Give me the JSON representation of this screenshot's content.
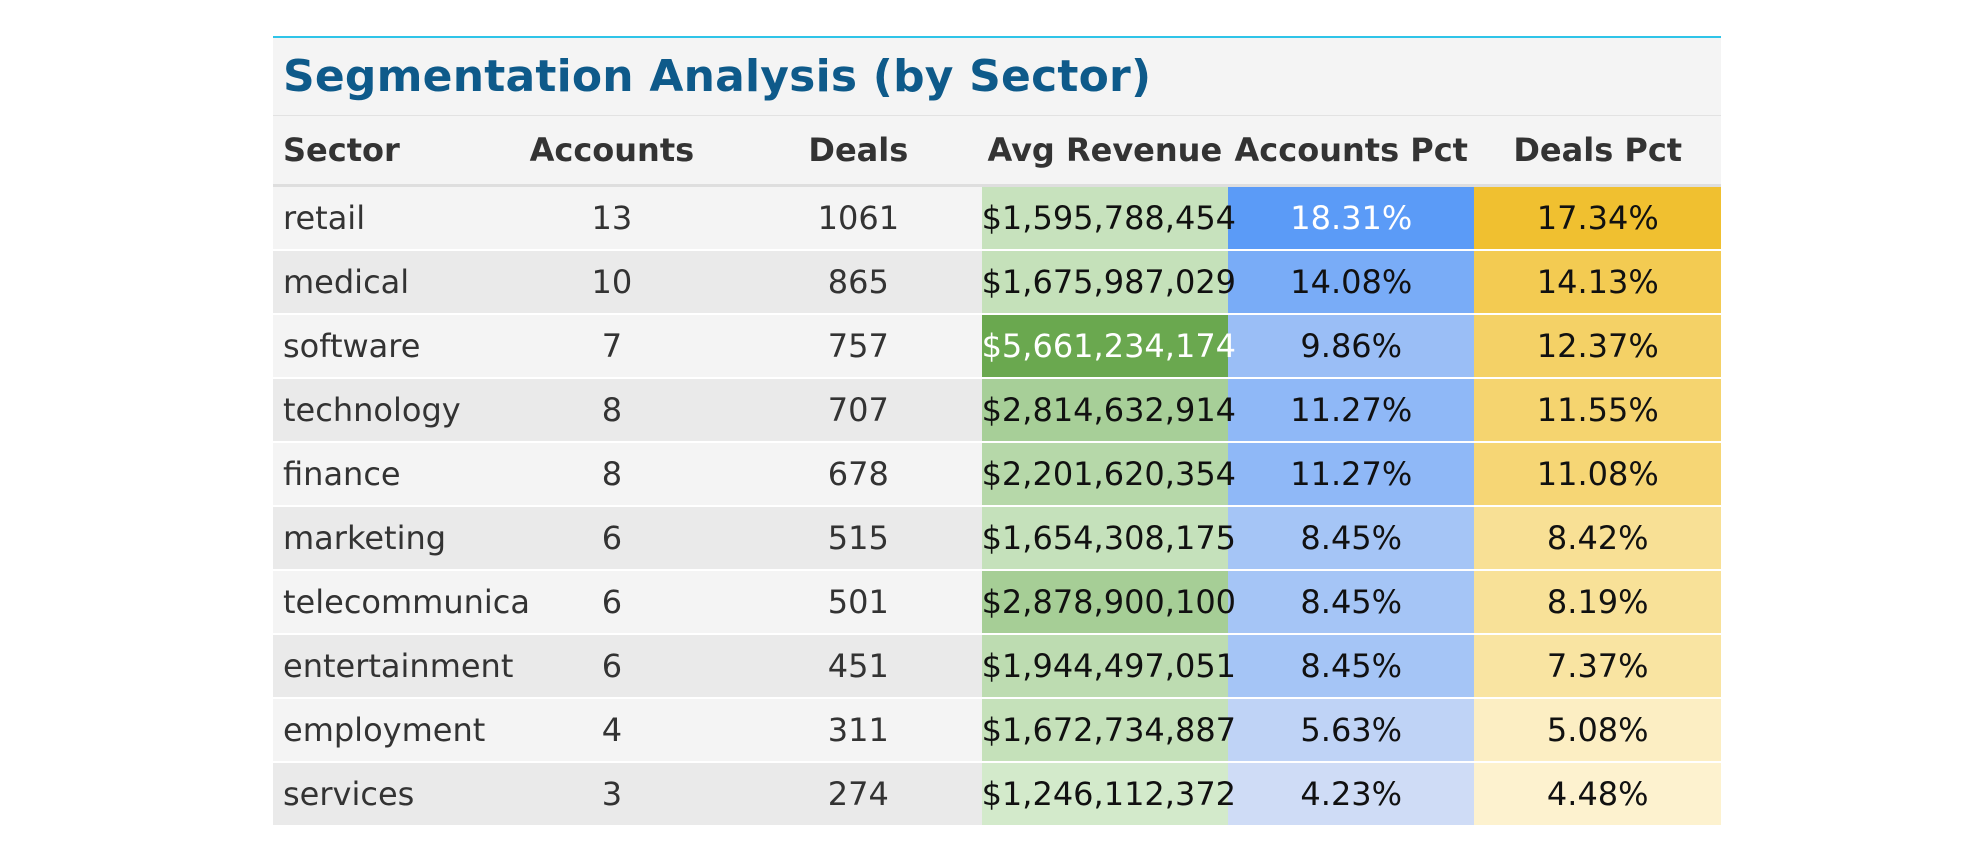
{
  "title": "Segmentation Analysis (by Sector)",
  "columns": [
    "Sector",
    "Accounts",
    "Deals",
    "Avg Revenue",
    "Accounts Pct",
    "Deals Pct"
  ],
  "colors": {
    "title": "#0e5a8a",
    "accent_rule": "#2fc4e8",
    "revenue_scale": [
      "#d3eacb",
      "#6aa84f"
    ],
    "accounts_pct_scale": [
      "#cfdcf6",
      "#5b9bf7"
    ],
    "deals_pct_scale": [
      "#fdf2cf",
      "#f0c030"
    ]
  },
  "rows": [
    {
      "sector": "retail",
      "accounts": "13",
      "deals": "1061",
      "avg_revenue": "$1,595,788,454",
      "accounts_pct": "18.31%",
      "deals_pct": "17.34%"
    },
    {
      "sector": "medical",
      "accounts": "10",
      "deals": "865",
      "avg_revenue": "$1,675,987,029",
      "accounts_pct": "14.08%",
      "deals_pct": "14.13%"
    },
    {
      "sector": "software",
      "accounts": "7",
      "deals": "757",
      "avg_revenue": "$5,661,234,174",
      "accounts_pct": "9.86%",
      "deals_pct": "12.37%"
    },
    {
      "sector": "technology",
      "accounts": "8",
      "deals": "707",
      "avg_revenue": "$2,814,632,914",
      "accounts_pct": "11.27%",
      "deals_pct": "11.55%"
    },
    {
      "sector": "finance",
      "accounts": "8",
      "deals": "678",
      "avg_revenue": "$2,201,620,354",
      "accounts_pct": "11.27%",
      "deals_pct": "11.08%"
    },
    {
      "sector": "marketing",
      "accounts": "6",
      "deals": "515",
      "avg_revenue": "$1,654,308,175",
      "accounts_pct": "8.45%",
      "deals_pct": "8.42%"
    },
    {
      "sector": "telecommunica",
      "accounts": "6",
      "deals": "501",
      "avg_revenue": "$2,878,900,100",
      "accounts_pct": "8.45%",
      "deals_pct": "8.19%"
    },
    {
      "sector": "entertainment",
      "accounts": "6",
      "deals": "451",
      "avg_revenue": "$1,944,497,051",
      "accounts_pct": "8.45%",
      "deals_pct": "7.37%"
    },
    {
      "sector": "employment",
      "accounts": "4",
      "deals": "311",
      "avg_revenue": "$1,672,734,887",
      "accounts_pct": "5.63%",
      "deals_pct": "5.08%"
    },
    {
      "sector": "services",
      "accounts": "3",
      "deals": "274",
      "avg_revenue": "$1,246,112,372",
      "accounts_pct": "4.23%",
      "deals_pct": "4.48%"
    }
  ]
}
